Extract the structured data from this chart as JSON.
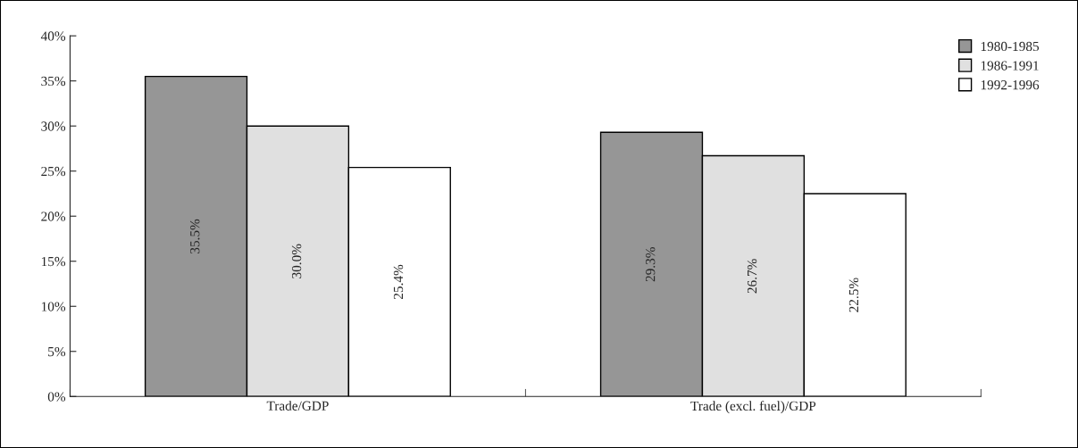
{
  "chart_data": {
    "type": "bar",
    "categories": [
      "Trade/GDP",
      "Trade (excl. fuel)/GDP"
    ],
    "series": [
      {
        "name": "1980-1985",
        "color": "#969696",
        "values": [
          35.5,
          29.3
        ],
        "value_labels": [
          "35.5%",
          "29.3%"
        ]
      },
      {
        "name": "1986-1991",
        "color": "#e0e0e0",
        "values": [
          30.0,
          26.7
        ],
        "value_labels": [
          "30.0%",
          "26.7%"
        ]
      },
      {
        "name": "1992-1996",
        "color": "#ffffff",
        "values": [
          25.4,
          22.5
        ],
        "value_labels": [
          "25.4%",
          "22.5%"
        ]
      }
    ],
    "ylim": [
      0,
      40
    ],
    "yticks": [
      {
        "value": 0,
        "label": "0%"
      },
      {
        "value": 5,
        "label": "5%"
      },
      {
        "value": 10,
        "label": "10%"
      },
      {
        "value": 15,
        "label": "15%"
      },
      {
        "value": 20,
        "label": "20%"
      },
      {
        "value": 25,
        "label": "25%"
      },
      {
        "value": 30,
        "label": "30%"
      },
      {
        "value": 35,
        "label": "35%"
      },
      {
        "value": 40,
        "label": "40%"
      }
    ],
    "grid": false,
    "legend": "top right",
    "marker": "square"
  }
}
